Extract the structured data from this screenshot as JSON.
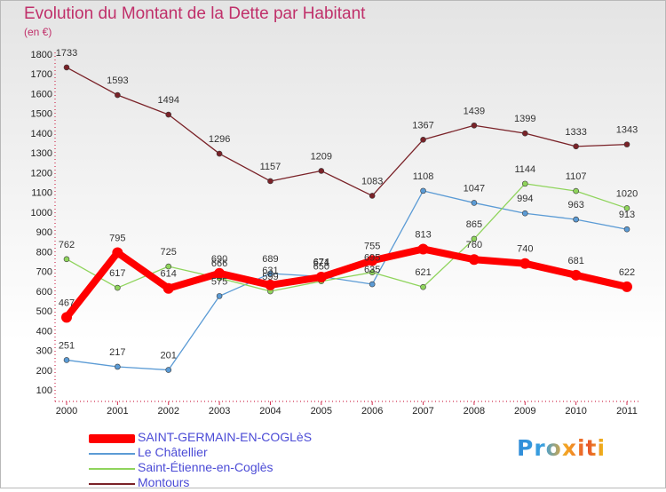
{
  "title": "Evolution du Montant de la Dette par Habitant",
  "subtitle": "(en €)",
  "logo_text": "Proxiti",
  "chart_data": {
    "type": "line",
    "ylim": [
      100,
      1800
    ],
    "yticks": [
      100,
      200,
      300,
      400,
      500,
      600,
      700,
      800,
      900,
      1000,
      1100,
      1200,
      1300,
      1400,
      1500,
      1600,
      1700,
      1800
    ],
    "categories": [
      "2000",
      "2001",
      "2002",
      "2003",
      "2004",
      "2005",
      "2006",
      "2007",
      "2008",
      "2009",
      "2010",
      "2011"
    ],
    "grid": false,
    "legend_position": "bottom-left",
    "series": [
      {
        "name": "Montours",
        "color": "#7a2228",
        "values": [
          1733,
          1593,
          1494,
          1296,
          1157,
          1209,
          1083,
          1367,
          1439,
          1399,
          1333,
          1343
        ],
        "labels": [
          "1733",
          "1593",
          "1494",
          "1296",
          "1157",
          "1209",
          "1083",
          "1367",
          "1439",
          "1399",
          "1333",
          "1343"
        ]
      },
      {
        "name": "Le Châtellier",
        "color": "#5b9bd5",
        "values": [
          251,
          217,
          201,
          575,
          689,
          674,
          635,
          1108,
          1047,
          994,
          963,
          913
        ],
        "labels": [
          "251",
          "217",
          "201",
          "575",
          "689",
          "674",
          "635",
          "1108",
          "1047",
          "994",
          "963",
          "913"
        ]
      },
      {
        "name": "Saint-Étienne-en-Coglès",
        "color": "#8fd45c",
        "values": [
          762,
          617,
          725,
          666,
          599,
          650,
          695,
          621,
          865,
          1144,
          1107,
          1020
        ],
        "labels": [
          "762",
          "617",
          "725",
          "666",
          "599",
          "650",
          "695",
          "621",
          "865",
          "1144",
          "1107",
          "1020"
        ]
      },
      {
        "name": "SAINT-GERMAIN-EN-COGLèS",
        "color": "#ff0000",
        "values": [
          467,
          795,
          614,
          690,
          631,
          671,
          755,
          813,
          760,
          740,
          681,
          622
        ],
        "labels": [
          "467",
          "795",
          "614",
          "690",
          "631",
          "671",
          "755",
          "813",
          "760",
          "740",
          "681",
          "622"
        ]
      }
    ]
  },
  "legend_items": [
    {
      "name": "SAINT-GERMAIN-EN-COGLèS",
      "color": "#ff0000",
      "thickness": 10
    },
    {
      "name": "Le Châtellier",
      "color": "#5b9bd5",
      "thickness": 2
    },
    {
      "name": "Saint-Étienne-en-Coglès",
      "color": "#8fd45c",
      "thickness": 2
    },
    {
      "name": "Montours",
      "color": "#7a2228",
      "thickness": 2
    }
  ]
}
